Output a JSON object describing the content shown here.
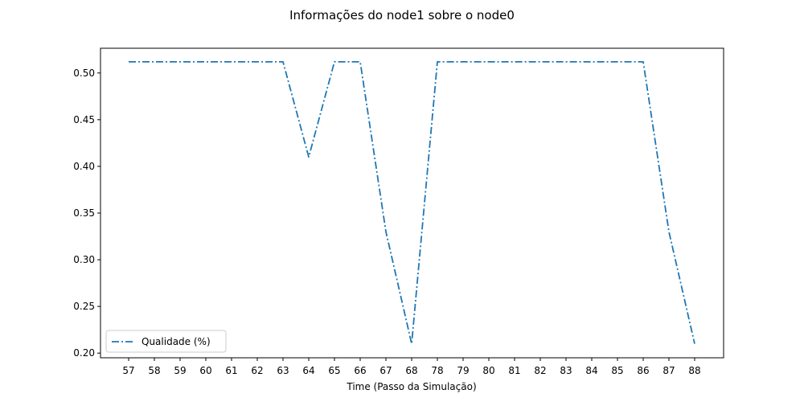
{
  "chart_data": {
    "type": "line",
    "title": "Informações do node1 sobre o node0",
    "xlabel": "Time (Passo da Simulação)",
    "ylabel": "",
    "categories": [
      "57",
      "58",
      "59",
      "60",
      "61",
      "62",
      "63",
      "64",
      "65",
      "66",
      "67",
      "68",
      "78",
      "79",
      "80",
      "81",
      "82",
      "83",
      "84",
      "85",
      "86",
      "87",
      "88"
    ],
    "series": [
      {
        "name": "Qualidade (%)",
        "color": "#1f77b4",
        "line_style": "dash-dot",
        "values": [
          0.512,
          0.512,
          0.512,
          0.512,
          0.512,
          0.512,
          0.512,
          0.41,
          0.512,
          0.512,
          0.33,
          0.21,
          0.512,
          0.512,
          0.512,
          0.512,
          0.512,
          0.512,
          0.512,
          0.512,
          0.512,
          0.33,
          0.21
        ]
      }
    ],
    "ylim": [
      0.195,
      0.5265
    ],
    "yticks": [
      "0.20",
      "0.25",
      "0.30",
      "0.35",
      "0.40",
      "0.45",
      "0.50"
    ],
    "ytick_values": [
      0.2,
      0.25,
      0.3,
      0.35,
      0.4,
      0.45,
      0.5
    ],
    "grid": false,
    "legend_position": "lower-left"
  }
}
